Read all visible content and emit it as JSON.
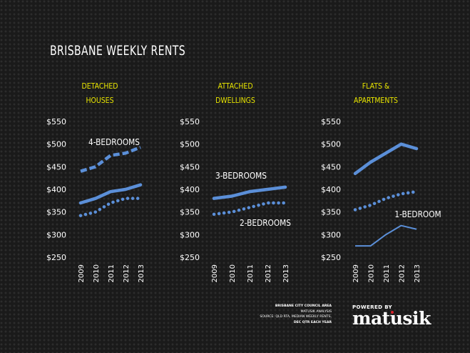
{
  "title": "BRISBANE WEEKLY RENTS",
  "source": {
    "line1": "BRISBANE CITY COUNCIL AREA",
    "line2": "MATUSIK ANALYSIS",
    "line3": "SOURCE: QLD RTA,  MEDIAN WEEKLY RENTS,",
    "line4": "DEC QTR EACH YEAR"
  },
  "brand": {
    "powered_by": "POWERED BY",
    "name": "matusik",
    "accent": "#d8202a"
  },
  "colors": {
    "line": "#5b8fd8",
    "title": "#ffffff",
    "panel_title": "#e8e500"
  },
  "chart_data": [
    {
      "type": "line",
      "title_lines": [
        "DETACHED",
        "HOUSES"
      ],
      "categories": [
        "2009",
        "2010",
        "2011",
        "2012",
        "2013"
      ],
      "y_ticks": [
        "$550",
        "$500",
        "$450",
        "$400",
        "$350",
        "$300",
        "$250"
      ],
      "ylim": [
        250,
        550
      ],
      "series": [
        {
          "name": "4-BEDROOMS",
          "style": "dashed",
          "values": [
            440,
            450,
            475,
            480,
            493
          ]
        },
        {
          "style": "solid",
          "values": [
            370,
            380,
            395,
            400,
            410
          ]
        },
        {
          "style": "dotted",
          "values": [
            342,
            350,
            370,
            380,
            380
          ]
        }
      ]
    },
    {
      "type": "line",
      "title_lines": [
        "ATTACHED",
        "DWELLINGS"
      ],
      "categories": [
        "2009",
        "2010",
        "2011",
        "2012",
        "2013"
      ],
      "y_ticks": [
        "$550",
        "$500",
        "$450",
        "$400",
        "$350",
        "$300",
        "$250"
      ],
      "ylim": [
        250,
        550
      ],
      "series": [
        {
          "name": "3-BEDROOMS",
          "style": "solid",
          "values": [
            380,
            385,
            395,
            400,
            405
          ]
        },
        {
          "name": "2-BEDROOMS",
          "style": "dotted",
          "values": [
            345,
            350,
            360,
            370,
            370
          ]
        }
      ]
    },
    {
      "type": "line",
      "title_lines": [
        "FLATS &",
        "APARTMENTS"
      ],
      "categories": [
        "2009",
        "2010",
        "2011",
        "2012",
        "2013"
      ],
      "y_ticks": [
        "$550",
        "$500",
        "$450",
        "$400",
        "$350",
        "$300",
        "$250"
      ],
      "ylim": [
        250,
        550
      ],
      "series": [
        {
          "style": "solid",
          "values": [
            435,
            460,
            480,
            500,
            490
          ]
        },
        {
          "style": "dotted",
          "values": [
            355,
            365,
            380,
            390,
            395
          ]
        },
        {
          "name": "1-BEDROOM",
          "style": "thin",
          "values": [
            275,
            275,
            300,
            320,
            312
          ]
        }
      ]
    }
  ]
}
